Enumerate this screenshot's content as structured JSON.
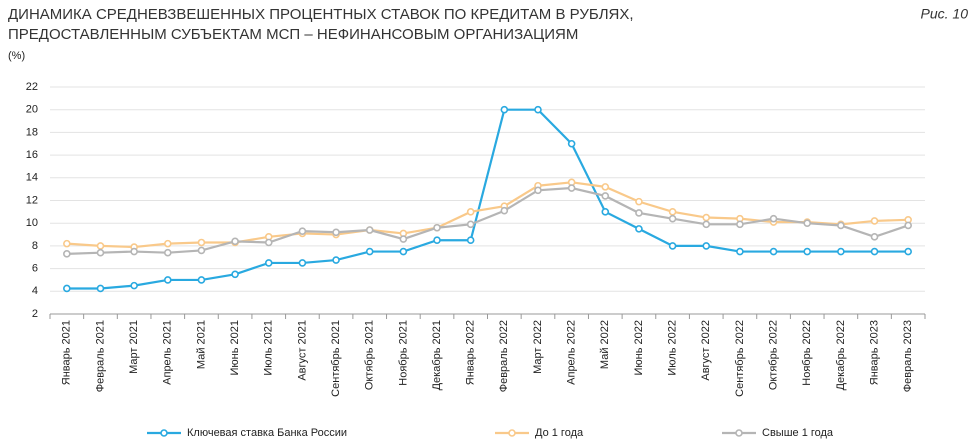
{
  "chart_data": {
    "type": "line",
    "title": [
      "ДИНАМИКА СРЕДНЕВЗВЕШЕННЫХ ПРОЦЕНТНЫХ СТАВОК ПО КРЕДИТАМ В РУБЛЯХ,",
      "ПРЕДОСТАВЛЕННЫМ СУБЪЕКТАМ МСП – НЕФИНАНСОВЫМ ОРГАНИЗАЦИЯМ"
    ],
    "figure_label": "Рис. 10",
    "y_label": "(%)",
    "categories": [
      "Январь 2021",
      "Февраль 2021",
      "Март 2021",
      "Апрель 2021",
      "Май 2021",
      "Июнь 2021",
      "Июль 2021",
      "Август 2021",
      "Сентябрь 2021",
      "Октябрь 2021",
      "Ноябрь 2021",
      "Декабрь 2021",
      "Январь 2022",
      "Февраль 2022",
      "Март 2022",
      "Апрель 2022",
      "Май 2022",
      "Июнь 2022",
      "Июль 2022",
      "Август 2022",
      "Сентябрь 2022",
      "Октябрь 2022",
      "Ноябрь 2022",
      "Декабрь 2022",
      "Январь 2023",
      "Февраль 2023"
    ],
    "series": [
      {
        "name": "Ключевая ставка Банка России",
        "color": "#29a9e0",
        "values": [
          4.25,
          4.25,
          4.5,
          5,
          5,
          5.5,
          6.5,
          6.5,
          6.75,
          7.5,
          7.5,
          8.5,
          8.5,
          20,
          20,
          17,
          11,
          9.5,
          8,
          8,
          7.5,
          7.5,
          7.5,
          7.5,
          7.5,
          7.5
        ]
      },
      {
        "name": "До 1 года",
        "color": "#f9c98a",
        "values": [
          8.2,
          8.0,
          7.9,
          8.2,
          8.3,
          8.3,
          8.8,
          9.1,
          9.0,
          9.4,
          9.1,
          9.6,
          11.0,
          11.5,
          13.3,
          13.6,
          13.2,
          11.9,
          11.0,
          10.5,
          10.4,
          10.1,
          10.1,
          9.9,
          10.2,
          10.3
        ]
      },
      {
        "name": "Свыше 1 года",
        "color": "#b5b5b5",
        "values": [
          7.3,
          7.4,
          7.5,
          7.4,
          7.6,
          8.4,
          8.3,
          9.3,
          9.2,
          9.4,
          8.6,
          9.6,
          9.9,
          11.1,
          12.9,
          13.1,
          12.4,
          10.9,
          10.4,
          9.9,
          9.9,
          10.4,
          10.0,
          9.8,
          8.8,
          9.8
        ]
      }
    ],
    "ylim": [
      2,
      22
    ],
    "yticks": [
      2,
      4,
      6,
      8,
      10,
      12,
      14,
      16,
      18,
      20,
      22
    ],
    "grid": true
  }
}
